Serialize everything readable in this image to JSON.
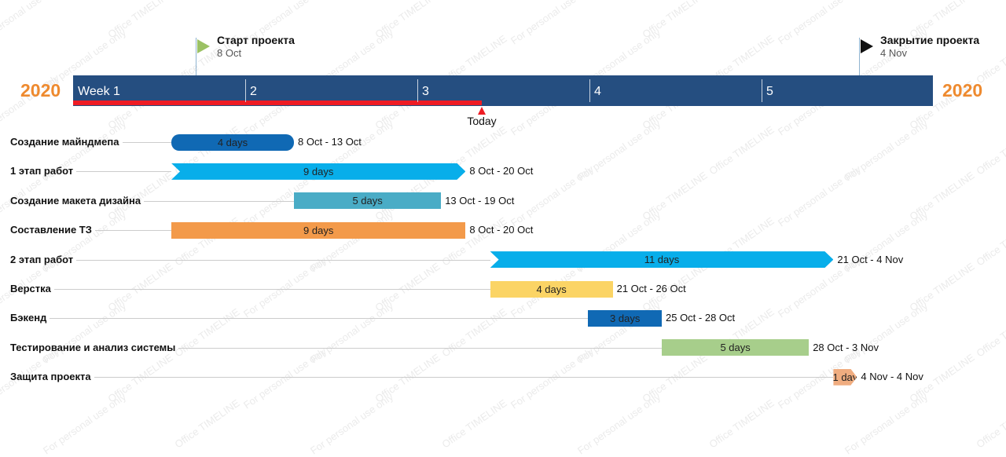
{
  "timeline": {
    "year_left": "2020",
    "year_right": "2020",
    "weeks": [
      "Week 1",
      "2",
      "3",
      "4",
      "5"
    ],
    "today_label": "Today",
    "today": "21 Oct"
  },
  "milestones": [
    {
      "title": "Старт проекта",
      "date": "8 Oct",
      "flag_color": "#9bc164"
    },
    {
      "title": "Закрытие проекта",
      "date": "4 Nov",
      "flag_color": "#111111"
    }
  ],
  "chart_data": {
    "type": "gantt",
    "year": "2020",
    "tasks": [
      {
        "name": "Создание майндмепа",
        "duration": "4 days",
        "range": "8 Oct - 13 Oct",
        "start": "2020-10-08",
        "end": "2020-10-13",
        "color": "#1069b4",
        "shape": "rounded"
      },
      {
        "name": "1 этап работ",
        "duration": "9 days",
        "range": "8 Oct - 20 Oct",
        "start": "2020-10-08",
        "end": "2020-10-20",
        "color": "#08aeea",
        "shape": "chevron"
      },
      {
        "name": "Создание макета дизайна",
        "duration": "5 days",
        "range": "13 Oct - 19 Oct",
        "start": "2020-10-13",
        "end": "2020-10-19",
        "color": "#4aacc6",
        "shape": "rect"
      },
      {
        "name": "Составление ТЗ",
        "duration": "9 days",
        "range": "8 Oct - 20 Oct",
        "start": "2020-10-08",
        "end": "2020-10-20",
        "color": "#f39a4a",
        "shape": "rect"
      },
      {
        "name": "2 этап работ",
        "duration": "11 days",
        "range": "21 Oct - 4 Nov",
        "start": "2020-10-21",
        "end": "2020-11-04",
        "color": "#08aeea",
        "shape": "chevron"
      },
      {
        "name": "Верстка",
        "duration": "4 days",
        "range": "21 Oct - 26 Oct",
        "start": "2020-10-21",
        "end": "2020-10-26",
        "color": "#fbd465",
        "shape": "rect"
      },
      {
        "name": "Бэкенд",
        "duration": "3 days",
        "range": "25 Oct - 28 Oct",
        "start": "2020-10-25",
        "end": "2020-10-28",
        "color": "#1069b4",
        "shape": "rect"
      },
      {
        "name": "Тестирование и анализ системы",
        "duration": "5 days",
        "range": "28 Oct - 3 Nov",
        "start": "2020-10-28",
        "end": "2020-11-03",
        "color": "#a7ce8b",
        "shape": "rect"
      },
      {
        "name": "Защита проекта",
        "duration": "1 day",
        "range": "4 Nov - 4 Nov",
        "start": "2020-11-04",
        "end": "2020-11-04",
        "color": "#f0ad80",
        "shape": "chevron"
      }
    ]
  },
  "watermark": {
    "texts": [
      "For personal use only",
      "Office TIMELINE"
    ]
  }
}
